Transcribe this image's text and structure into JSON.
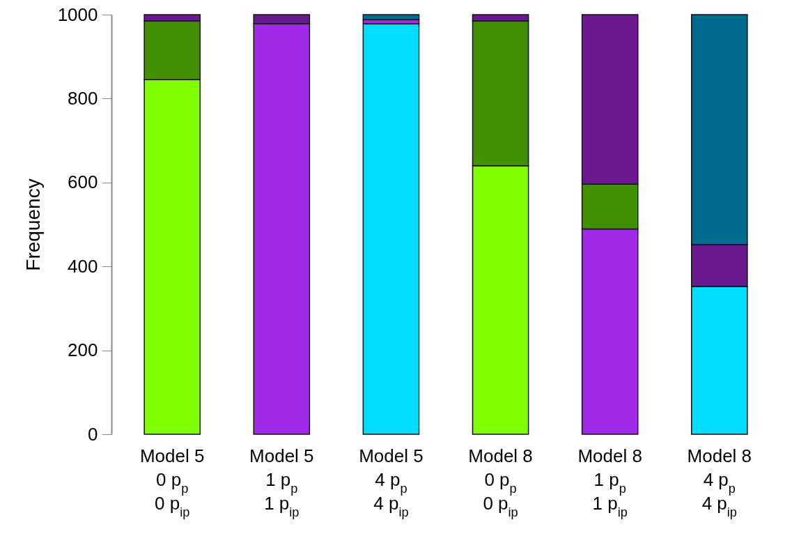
{
  "chart_data": {
    "type": "bar",
    "stacked": true,
    "ylabel": "Frequency",
    "categories": [
      "Model 5\n0 p$_{p}$\n0 p$_{ip}$",
      "Model 5\n1 p$_{p}$\n1 p$_{ip}$",
      "Model 5\n4 p$_{p}$\n4 p$_{ip}$",
      "Model 8\n0 p$_{p}$\n0 p$_{ip}$",
      "Model 8\n1 p$_{p}$\n1 p$_{ip}$",
      "Model 8\n4 p$_{p}$\n4 p$_{ip}$"
    ],
    "series": [
      {
        "color": "#80ff00",
        "values": [
          845,
          null,
          null,
          640,
          null,
          null
        ]
      },
      {
        "color": "#00ddff",
        "values": [
          null,
          null,
          978,
          null,
          null,
          352
        ]
      },
      {
        "color": "#a02ae8",
        "values": [
          null,
          978,
          10,
          null,
          489,
          null
        ]
      },
      {
        "color": "#428f00",
        "values": [
          140,
          null,
          null,
          345,
          107,
          null
        ]
      },
      {
        "color": "#6a1a8e",
        "values": [
          15,
          22,
          null,
          15,
          404,
          100
        ]
      },
      {
        "color": "#006a8f",
        "values": [
          null,
          null,
          12,
          null,
          null,
          548
        ]
      }
    ],
    "ylim": [
      0,
      1000
    ],
    "yticks": [
      0,
      200,
      400,
      600,
      800,
      1000
    ],
    "grid": false,
    "legend": false
  }
}
